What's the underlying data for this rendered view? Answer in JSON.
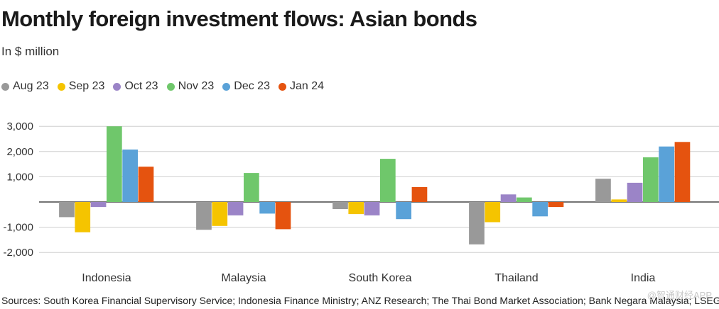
{
  "title": "Monthly foreign investment flows: Asian bonds",
  "subtitle": "In $ million",
  "source": "Sources: South Korea Financial Supervisory Service; Indonesia Finance Ministry; ANZ Research; The Thai Bond Market Association; Bank Negara Malaysia; LSEG",
  "watermark": "@智通财经APP",
  "chart_data": {
    "type": "bar",
    "title": "Monthly foreign investment flows: Asian bonds",
    "subtitle": "In $ million",
    "xlabel": "",
    "ylabel": "",
    "categories": [
      "Indonesia",
      "Malaysia",
      "South Korea",
      "Thailand",
      "India"
    ],
    "ylim": [
      -2300,
      3300
    ],
    "yticks": [
      3000,
      2000,
      1000,
      0,
      -1000,
      -2000
    ],
    "ytick_labels": [
      "3,000",
      "2,000",
      "1,000",
      "",
      "-1,000",
      "-2,000"
    ],
    "grid": true,
    "legend_position": "top-left",
    "series": [
      {
        "name": "Aug 23",
        "color": "#999999",
        "values": [
          -600,
          -1100,
          -280,
          -1680,
          920
        ]
      },
      {
        "name": "Sep 23",
        "color": "#f5c400",
        "values": [
          -1200,
          -950,
          -480,
          -800,
          100
        ]
      },
      {
        "name": "Oct 23",
        "color": "#9b84c7",
        "values": [
          -200,
          -530,
          -530,
          300,
          760
        ]
      },
      {
        "name": "Nov 23",
        "color": "#6fc76b",
        "values": [
          3000,
          1150,
          1710,
          180,
          1770
        ]
      },
      {
        "name": "Dec 23",
        "color": "#5aa2d8",
        "values": [
          2080,
          -460,
          -680,
          -570,
          2200
        ]
      },
      {
        "name": "Jan 24",
        "color": "#e5530f",
        "values": [
          1400,
          -1080,
          590,
          -200,
          2380
        ]
      }
    ]
  }
}
